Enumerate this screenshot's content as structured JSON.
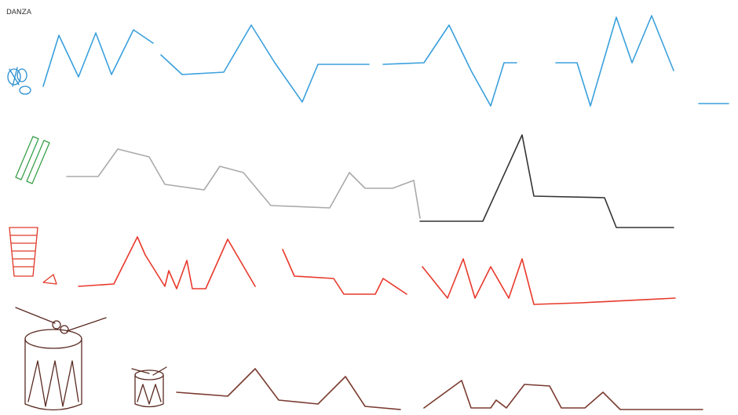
{
  "header": {
    "title": "DANZA"
  }
}
